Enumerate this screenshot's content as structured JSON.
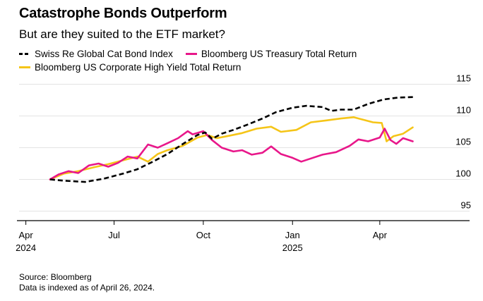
{
  "title": "Catastrophe Bonds Outperform",
  "subtitle": "But are they suited to the ETF market?",
  "footer": {
    "source": "Source: Bloomberg",
    "note": "Data is indexed as of April 26, 2024."
  },
  "chart_data": {
    "type": "line",
    "title": "Catastrophe Bonds Outperform",
    "subtitle": "But are they suited to the ETF market?",
    "x_ticks": [
      {
        "date": "2024-04-01",
        "label": "Apr",
        "sublabel": "2024"
      },
      {
        "date": "2024-07-01",
        "label": "Jul",
        "sublabel": ""
      },
      {
        "date": "2024-10-01",
        "label": "Oct",
        "sublabel": ""
      },
      {
        "date": "2025-01-01",
        "label": "Jan",
        "sublabel": "2025"
      },
      {
        "date": "2025-04-01",
        "label": "Apr",
        "sublabel": ""
      }
    ],
    "xlim": [
      "2024-03-25",
      "2025-05-25"
    ],
    "y_ticks": [
      95,
      100,
      105,
      110,
      115
    ],
    "ylim": [
      93.5,
      115.5
    ],
    "y_axis_side": "right",
    "grid": "horizontal",
    "legend_position": "top",
    "series": [
      {
        "name": "Swiss Re Global Cat Bond Index",
        "color": "#000000",
        "dash": "dashed",
        "points": [
          [
            "2024-04-26",
            100.0
          ],
          [
            "2024-05-10",
            99.8
          ],
          [
            "2024-06-01",
            99.6
          ],
          [
            "2024-06-20",
            100.1
          ],
          [
            "2024-07-10",
            100.9
          ],
          [
            "2024-07-25",
            101.6
          ],
          [
            "2024-08-10",
            102.8
          ],
          [
            "2024-08-25",
            104.0
          ],
          [
            "2024-09-10",
            105.6
          ],
          [
            "2024-09-25",
            107.0
          ],
          [
            "2024-10-03",
            107.4
          ],
          [
            "2024-10-10",
            106.4
          ],
          [
            "2024-10-20",
            107.2
          ],
          [
            "2024-11-01",
            107.8
          ],
          [
            "2024-11-15",
            108.6
          ],
          [
            "2024-12-01",
            109.6
          ],
          [
            "2024-12-15",
            110.6
          ],
          [
            "2025-01-01",
            111.3
          ],
          [
            "2025-01-15",
            111.6
          ],
          [
            "2025-02-01",
            111.4
          ],
          [
            "2025-02-10",
            110.8
          ],
          [
            "2025-02-20",
            111.0
          ],
          [
            "2025-03-05",
            111.0
          ],
          [
            "2025-03-20",
            111.9
          ],
          [
            "2025-04-05",
            112.6
          ],
          [
            "2025-04-20",
            112.9
          ],
          [
            "2025-05-08",
            113.0
          ]
        ]
      },
      {
        "name": "Bloomberg US Treasury Total Return",
        "color": "#e8178a",
        "dash": "solid",
        "points": [
          [
            "2024-04-26",
            100.0
          ],
          [
            "2024-05-05",
            100.8
          ],
          [
            "2024-05-15",
            101.3
          ],
          [
            "2024-05-25",
            101.0
          ],
          [
            "2024-06-05",
            102.2
          ],
          [
            "2024-06-15",
            102.5
          ],
          [
            "2024-06-25",
            102.0
          ],
          [
            "2024-07-05",
            102.6
          ],
          [
            "2024-07-15",
            103.6
          ],
          [
            "2024-07-25",
            103.3
          ],
          [
            "2024-08-05",
            105.5
          ],
          [
            "2024-08-15",
            105.0
          ],
          [
            "2024-08-25",
            105.7
          ],
          [
            "2024-09-05",
            106.5
          ],
          [
            "2024-09-15",
            107.6
          ],
          [
            "2024-09-20",
            107.1
          ],
          [
            "2024-10-01",
            107.6
          ],
          [
            "2024-10-10",
            106.2
          ],
          [
            "2024-10-20",
            105.0
          ],
          [
            "2024-11-01",
            104.4
          ],
          [
            "2024-11-10",
            104.6
          ],
          [
            "2024-11-20",
            103.9
          ],
          [
            "2024-12-01",
            104.2
          ],
          [
            "2024-12-10",
            105.2
          ],
          [
            "2024-12-20",
            104.0
          ],
          [
            "2025-01-01",
            103.4
          ],
          [
            "2025-01-10",
            102.8
          ],
          [
            "2025-01-20",
            103.3
          ],
          [
            "2025-02-01",
            103.9
          ],
          [
            "2025-02-15",
            104.3
          ],
          [
            "2025-03-01",
            105.3
          ],
          [
            "2025-03-10",
            106.3
          ],
          [
            "2025-03-20",
            106.0
          ],
          [
            "2025-04-01",
            106.6
          ],
          [
            "2025-04-06",
            108.0
          ],
          [
            "2025-04-12",
            106.2
          ],
          [
            "2025-04-18",
            105.6
          ],
          [
            "2025-04-25",
            106.5
          ],
          [
            "2025-05-05",
            106.0
          ]
        ]
      },
      {
        "name": "Bloomberg US Corporate High Yield Total Return",
        "color": "#f5c518",
        "dash": "solid",
        "points": [
          [
            "2024-04-26",
            100.0
          ],
          [
            "2024-05-10",
            100.9
          ],
          [
            "2024-05-25",
            101.3
          ],
          [
            "2024-06-10",
            101.9
          ],
          [
            "2024-06-25",
            102.4
          ],
          [
            "2024-07-10",
            103.0
          ],
          [
            "2024-07-25",
            103.6
          ],
          [
            "2024-08-05",
            102.8
          ],
          [
            "2024-08-15",
            104.0
          ],
          [
            "2024-08-25",
            104.6
          ],
          [
            "2024-09-10",
            105.3
          ],
          [
            "2024-09-25",
            106.6
          ],
          [
            "2024-10-05",
            107.0
          ],
          [
            "2024-10-15",
            106.5
          ],
          [
            "2024-10-25",
            106.8
          ],
          [
            "2024-11-10",
            107.3
          ],
          [
            "2024-11-25",
            108.0
          ],
          [
            "2024-12-10",
            108.3
          ],
          [
            "2024-12-20",
            107.5
          ],
          [
            "2025-01-05",
            107.8
          ],
          [
            "2025-01-20",
            109.0
          ],
          [
            "2025-02-05",
            109.3
          ],
          [
            "2025-02-20",
            109.6
          ],
          [
            "2025-03-05",
            109.8
          ],
          [
            "2025-03-15",
            109.4
          ],
          [
            "2025-03-25",
            109.0
          ],
          [
            "2025-04-03",
            108.9
          ],
          [
            "2025-04-08",
            106.0
          ],
          [
            "2025-04-15",
            106.8
          ],
          [
            "2025-04-25",
            107.2
          ],
          [
            "2025-05-05",
            108.2
          ]
        ]
      }
    ]
  }
}
